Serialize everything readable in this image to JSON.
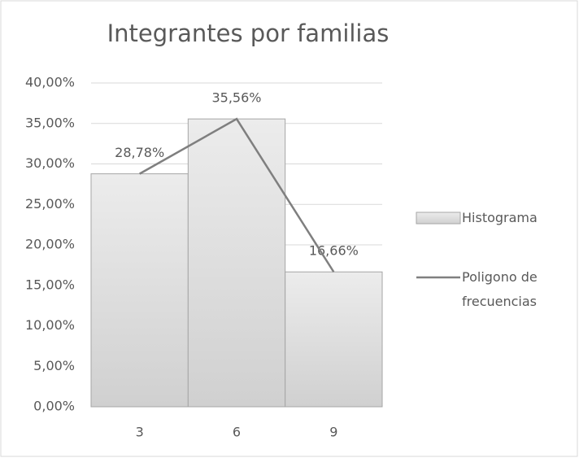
{
  "chart_data": {
    "type": "bar",
    "title": "Integrantes por familias",
    "categories": [
      "3",
      "6",
      "9"
    ],
    "series": [
      {
        "name": "Histograma",
        "type": "bar",
        "color": "#d9d9d9",
        "values": [
          28.78,
          35.56,
          16.66
        ],
        "value_labels": [
          "28,78%",
          "35,56%",
          "16,66%"
        ]
      },
      {
        "name": "Poligono de frecuencias",
        "type": "line",
        "color": "#7f7f7f",
        "values": [
          28.78,
          35.56,
          16.66
        ]
      }
    ],
    "ylim": [
      0,
      40
    ],
    "yticks": [
      {
        "value": 0,
        "label": "0,00%"
      },
      {
        "value": 5,
        "label": "5,00%"
      },
      {
        "value": 10,
        "label": "10,00%"
      },
      {
        "value": 15,
        "label": "15,00%"
      },
      {
        "value": 20,
        "label": "20,00%"
      },
      {
        "value": 25,
        "label": "25,00%"
      },
      {
        "value": 30,
        "label": "30,00%"
      },
      {
        "value": 35,
        "label": "35,00%"
      },
      {
        "value": 40,
        "label": "40,00%"
      }
    ],
    "grid": true,
    "legend": "right"
  }
}
